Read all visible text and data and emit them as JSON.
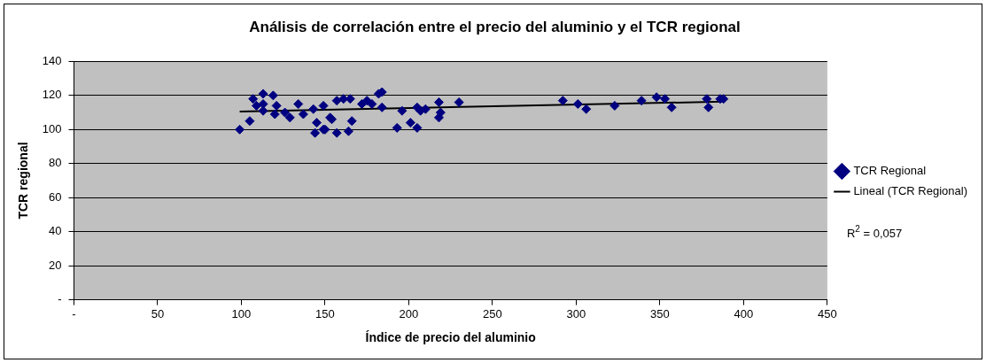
{
  "chart_data": {
    "type": "scatter",
    "title": "Análisis de correlación entre el precio del aluminio y el TCR regional",
    "xlabel": "Índice de precio del aluminio",
    "ylabel": "TCR regional",
    "xlim": [
      0,
      450
    ],
    "xticks": [
      {
        "value": 0,
        "label": "-"
      },
      50,
      100,
      150,
      200,
      250,
      300,
      350,
      400,
      450
    ],
    "ylim": [
      0,
      140
    ],
    "yticks": [
      {
        "value": 0,
        "label": "-"
      },
      20,
      40,
      60,
      80,
      100,
      120,
      140
    ],
    "grid": "y",
    "legend": "right",
    "marker": "diamond",
    "annotations": [
      "R$^{2}$ = 0,057"
    ],
    "series": [
      {
        "name": "TCR Regional",
        "color": "#000080",
        "x": [
          99,
          105,
          107,
          109,
          113,
          113,
          119,
          113,
          121,
          120,
          126,
          129,
          134,
          137,
          143,
          145,
          144,
          149,
          149,
          154,
          153,
          150,
          157,
          157,
          161,
          165,
          166,
          164,
          172,
          175,
          178,
          182,
          184,
          184,
          196,
          193,
          201,
          205,
          205,
          210,
          207,
          218,
          219,
          218,
          230,
          292,
          301,
          306,
          323,
          339,
          348,
          353,
          357,
          378,
          379,
          386,
          388
        ],
        "values": [
          100,
          105,
          118,
          114,
          121,
          115,
          120,
          111,
          114,
          109,
          110,
          107,
          115,
          109,
          112,
          104,
          98,
          100,
          114,
          106,
          107,
          100,
          98,
          117,
          118,
          118,
          105,
          99,
          115,
          117,
          115,
          121,
          122,
          113,
          111,
          101,
          104,
          101,
          113,
          112,
          111,
          116,
          110,
          107,
          116,
          117,
          115,
          112,
          114,
          117,
          119,
          118,
          113,
          118,
          113,
          118,
          118
        ]
      },
      {
        "name": "Lineal (TCR Regional)",
        "type": "line",
        "color": "#000000",
        "marker": "none",
        "line_style": "solid",
        "x": [
          99,
          388
        ],
        "values": [
          110.6,
          116.4
        ]
      }
    ]
  }
}
